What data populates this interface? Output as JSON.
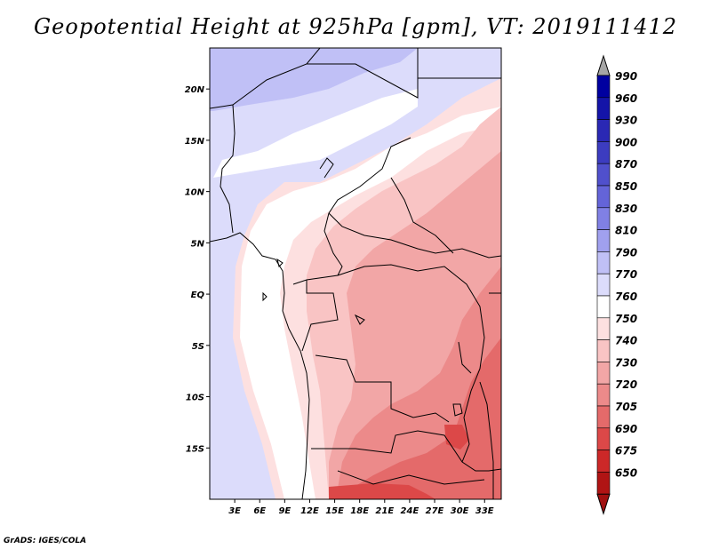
{
  "title": "Geopotential Height at 925hPa [gpm], VT: 2019111412",
  "credit": "GrADS: IGES/COLA",
  "map": {
    "lon_range": [
      0,
      35
    ],
    "lat_range": [
      -20,
      24
    ],
    "lat_ticks": [
      {
        "value": 20,
        "label": "20N"
      },
      {
        "value": 15,
        "label": "15N"
      },
      {
        "value": 10,
        "label": "10N"
      },
      {
        "value": 5,
        "label": "5N"
      },
      {
        "value": 0,
        "label": "EQ"
      },
      {
        "value": -5,
        "label": "5S"
      },
      {
        "value": -10,
        "label": "10S"
      },
      {
        "value": -15,
        "label": "15S"
      }
    ],
    "lon_ticks": [
      {
        "value": 3,
        "label": "3E"
      },
      {
        "value": 6,
        "label": "6E"
      },
      {
        "value": 9,
        "label": "9E"
      },
      {
        "value": 12,
        "label": "12E"
      },
      {
        "value": 15,
        "label": "15E"
      },
      {
        "value": 18,
        "label": "18E"
      },
      {
        "value": 21,
        "label": "21E"
      },
      {
        "value": 24,
        "label": "24E"
      },
      {
        "value": 27,
        "label": "27E"
      },
      {
        "value": 30,
        "label": "30E"
      },
      {
        "value": 33,
        "label": "33E"
      }
    ]
  },
  "colorbar": {
    "levels": [
      {
        "label": "990",
        "color": "#0000a0"
      },
      {
        "label": "960",
        "color": "#1414a8"
      },
      {
        "label": "930",
        "color": "#2a28b4"
      },
      {
        "label": "900",
        "color": "#3c3cc0"
      },
      {
        "label": "870",
        "color": "#5050cc"
      },
      {
        "label": "850",
        "color": "#6464d8"
      },
      {
        "label": "830",
        "color": "#8080e4"
      },
      {
        "label": "810",
        "color": "#a0a0ee"
      },
      {
        "label": "790",
        "color": "#c0c0f6"
      },
      {
        "label": "770",
        "color": "#dcdcfb"
      },
      {
        "label": "760",
        "color": "#ffffff"
      },
      {
        "label": "750",
        "color": "#fde0e0"
      },
      {
        "label": "740",
        "color": "#f9c4c4"
      },
      {
        "label": "730",
        "color": "#f2a6a6"
      },
      {
        "label": "720",
        "color": "#ec8a8a"
      },
      {
        "label": "705",
        "color": "#e46a6a"
      },
      {
        "label": "690",
        "color": "#dc4848"
      },
      {
        "label": "675",
        "color": "#cc2828"
      },
      {
        "label": "650",
        "color": "#b01414"
      }
    ],
    "top_arrow_color": "#a6a6a6",
    "bottom_arrow_color": "#a01010"
  }
}
